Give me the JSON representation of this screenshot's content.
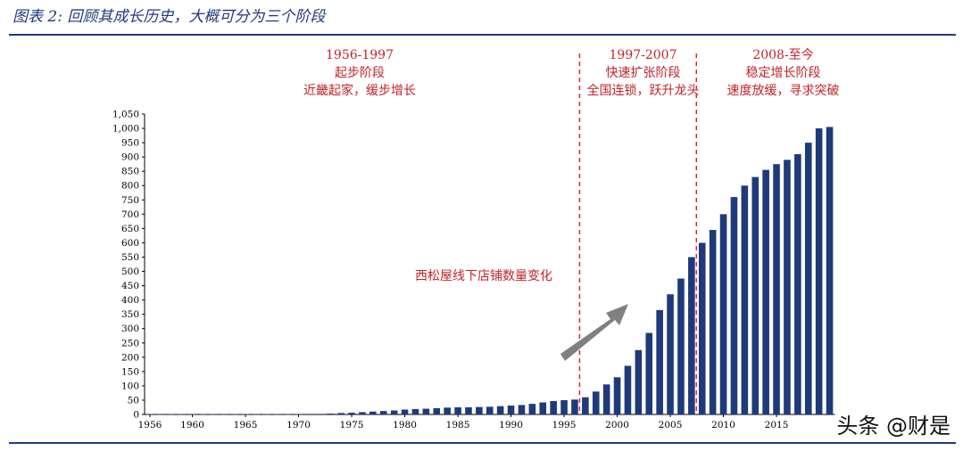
{
  "header": {
    "title": "图表 2: 回顾其成长历史，大概可分为三个阶段"
  },
  "phases": [
    {
      "years": "1956-1997",
      "name": "起步阶段",
      "desc": "近畿起家，缓步增长"
    },
    {
      "years": "1997-2007",
      "name": "快速扩张阶段",
      "desc": "全国连锁，跃升龙头"
    },
    {
      "years": "2008-至今",
      "name": "稳定增长阶段",
      "desc": "速度放缓，寻求突破"
    }
  ],
  "annotation": "西松屋线下店铺数量变化",
  "watermark": "头条 @财是",
  "colors": {
    "bar": "#1f3a7a",
    "phase_text": "#c0232c",
    "divider": "#e0242c",
    "arrow": "#808080"
  },
  "chart_data": {
    "type": "bar",
    "x": [
      1956,
      1957,
      1958,
      1959,
      1960,
      1961,
      1962,
      1963,
      1964,
      1965,
      1966,
      1967,
      1968,
      1969,
      1970,
      1971,
      1972,
      1973,
      1974,
      1975,
      1976,
      1977,
      1978,
      1979,
      1980,
      1981,
      1982,
      1983,
      1984,
      1985,
      1986,
      1987,
      1988,
      1989,
      1990,
      1991,
      1992,
      1993,
      1994,
      1995,
      1996,
      1997,
      1998,
      1999,
      2000,
      2001,
      2002,
      2003,
      2004,
      2005,
      2006,
      2007,
      2008,
      2009,
      2010,
      2011,
      2012,
      2013,
      2014,
      2015,
      2016,
      2017,
      2018,
      2019,
      2020
    ],
    "values": [
      1,
      1,
      1,
      1,
      1,
      1,
      1,
      1,
      1,
      1,
      1,
      1,
      1,
      1,
      1,
      2,
      2,
      3,
      5,
      6,
      8,
      10,
      12,
      14,
      17,
      19,
      20,
      22,
      24,
      25,
      25,
      26,
      27,
      29,
      31,
      33,
      37,
      42,
      47,
      50,
      52,
      60,
      80,
      105,
      130,
      170,
      225,
      285,
      365,
      420,
      475,
      550,
      600,
      645,
      700,
      760,
      800,
      830,
      855,
      875,
      890,
      910,
      950,
      1000,
      1005
    ],
    "x_ticks": [
      "1956",
      "1960",
      "1965",
      "1970",
      "1975",
      "1980",
      "1985",
      "1990",
      "1995",
      "2000",
      "2005",
      "2010",
      "2015"
    ],
    "y_ticks": [
      "0",
      "50",
      "100",
      "150",
      "200",
      "250",
      "300",
      "350",
      "400",
      "450",
      "500",
      "550",
      "600",
      "650",
      "700",
      "750",
      "800",
      "850",
      "900",
      "950",
      "1,000",
      "1,050"
    ],
    "ylim": [
      0,
      1050
    ],
    "dividers": [
      1997,
      2008
    ],
    "title": "",
    "xlabel": "",
    "ylabel": ""
  }
}
